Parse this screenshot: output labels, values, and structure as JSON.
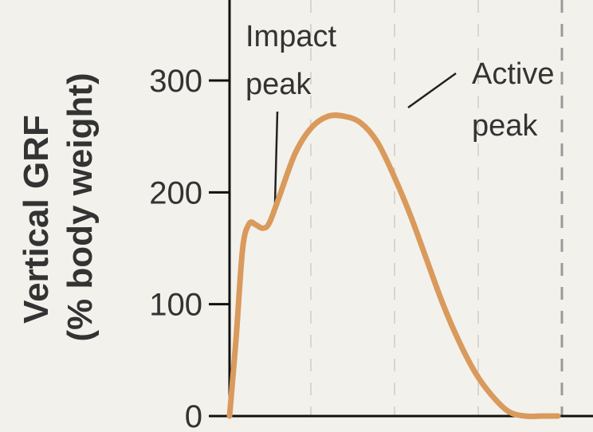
{
  "chart_data": {
    "type": "line",
    "ylabel_line1": "Vertical GRF",
    "ylabel_line2": "(% body weight)",
    "yticks": [
      0,
      100,
      200,
      300
    ],
    "yticks_labels": [
      "0",
      "100",
      "200",
      "300"
    ],
    "ylim": [
      0,
      370
    ],
    "grid": "vertical dashed",
    "series": [
      {
        "color": "#d99a5c",
        "x": [
          0,
          0.02,
          0.04,
          0.06,
          0.08,
          0.1,
          0.12,
          0.15,
          0.2,
          0.25,
          0.3,
          0.35,
          0.4,
          0.45,
          0.5,
          0.55,
          0.6,
          0.65,
          0.7,
          0.75,
          0.8,
          0.85,
          0.9,
          0.95,
          1.0
        ],
        "y": [
          0,
          70,
          150,
          172,
          171,
          168,
          172,
          195,
          235,
          258,
          268,
          268,
          262,
          245,
          215,
          180,
          140,
          100,
          66,
          38,
          18,
          4,
          0,
          0,
          0
        ]
      }
    ],
    "annotations": [
      {
        "text_line1": "Impact",
        "text_line2": "peak"
      },
      {
        "text_line1": "Active",
        "text_line2": "peak"
      }
    ]
  }
}
